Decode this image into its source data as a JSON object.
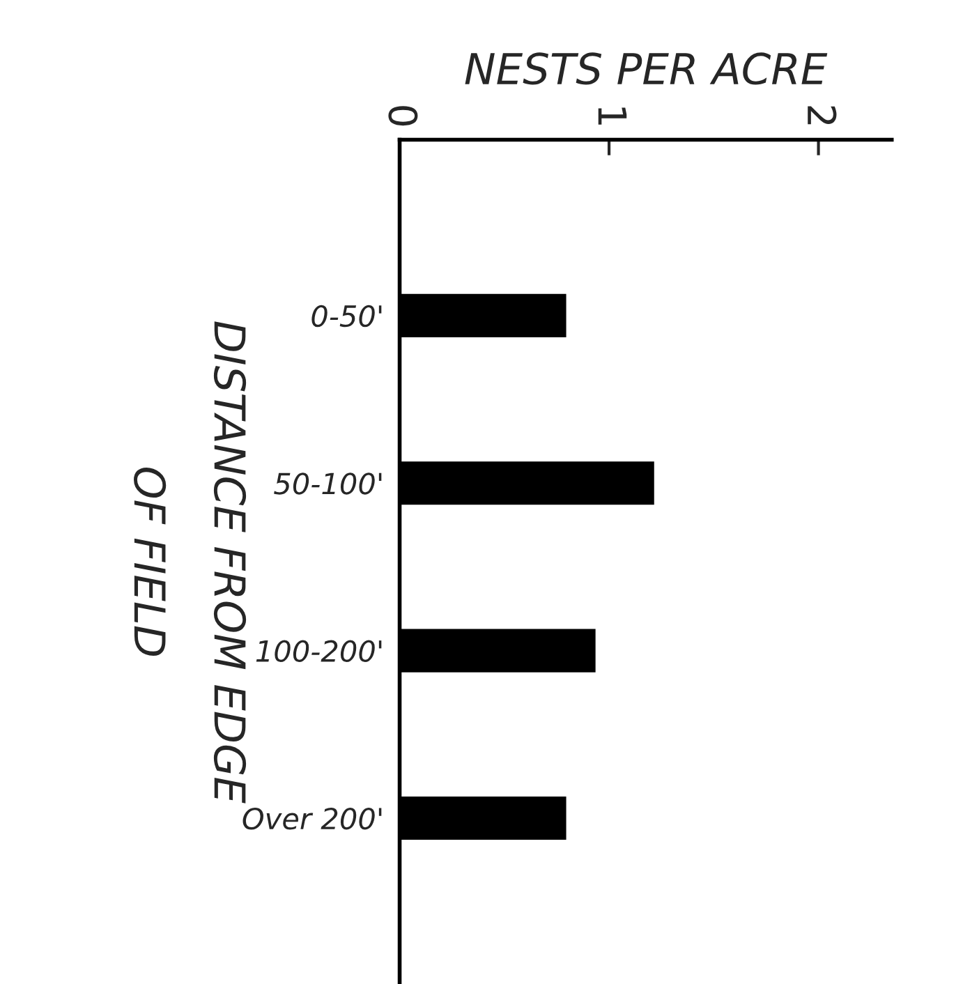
{
  "chart_data": {
    "type": "bar",
    "orientation": "horizontal",
    "xlabel": "NESTS PER ACRE",
    "ylabel": "DISTANCE FROM EDGE\nOF FIELD",
    "categories": [
      "0-50'",
      "50-100'",
      "100-200'",
      "Over 200'"
    ],
    "values": [
      0.8,
      1.22,
      0.94,
      0.8
    ],
    "color": "#000000",
    "xlim": [
      0,
      2.35
    ],
    "xticks": [
      0,
      1,
      2
    ],
    "grid": false
  }
}
